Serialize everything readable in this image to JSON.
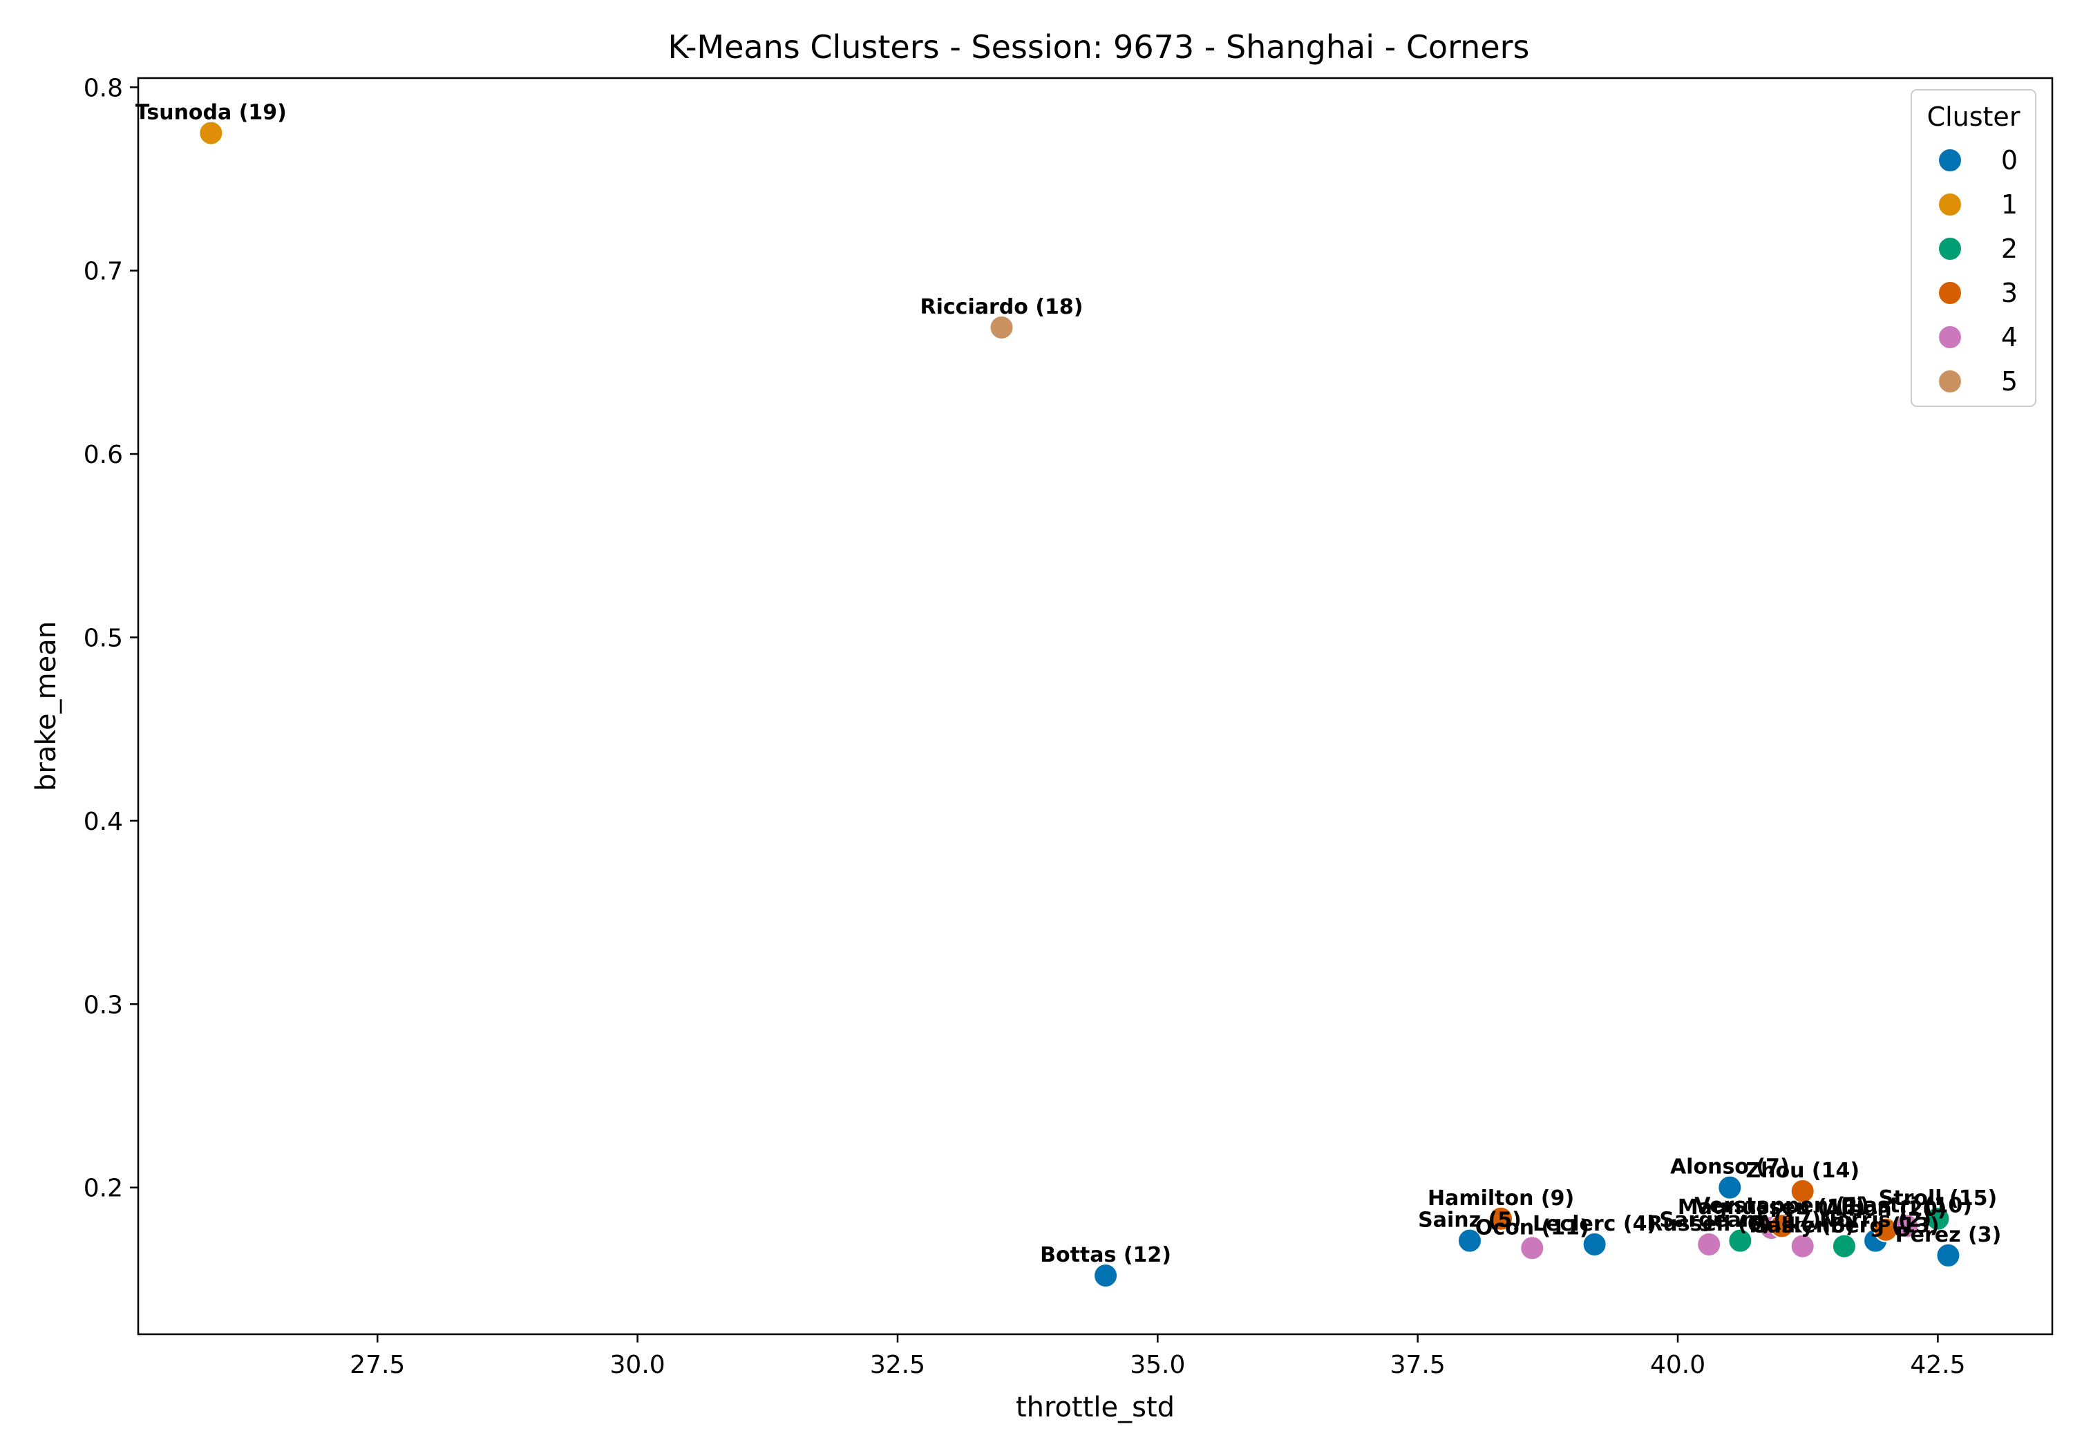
{
  "chart_data": {
    "type": "scatter",
    "title": "K-Means Clusters - Session: 9673 - Shanghai - Corners",
    "xlabel": "throttle_std",
    "ylabel": "brake_mean",
    "xlim": [
      25.2,
      43.6
    ],
    "ylim": [
      0.12,
      0.805
    ],
    "xticks": [
      27.5,
      30.0,
      32.5,
      35.0,
      37.5,
      40.0,
      42.5
    ],
    "xtick_labels": [
      "27.5",
      "30.0",
      "32.5",
      "35.0",
      "37.5",
      "40.0",
      "42.5"
    ],
    "yticks": [
      0.2,
      0.3,
      0.4,
      0.5,
      0.6,
      0.7,
      0.8
    ],
    "ytick_labels": [
      "0.2",
      "0.3",
      "0.4",
      "0.5",
      "0.6",
      "0.7",
      "0.8"
    ],
    "grid": false,
    "legend": {
      "title": "Cluster",
      "placement": "top-right",
      "entries": [
        {
          "label": "0",
          "color": "#0173b2"
        },
        {
          "label": "1",
          "color": "#de8f05"
        },
        {
          "label": "2",
          "color": "#029e73"
        },
        {
          "label": "3",
          "color": "#d55e00"
        },
        {
          "label": "4",
          "color": "#cc78bc"
        },
        {
          "label": "5",
          "color": "#ca9161"
        }
      ]
    },
    "points": [
      {
        "label": "Tsunoda (19)",
        "x": 25.9,
        "y": 0.775,
        "cluster": 1
      },
      {
        "label": "Ricciardo (18)",
        "x": 33.5,
        "y": 0.669,
        "cluster": 5
      },
      {
        "label": "Bottas (12)",
        "x": 34.5,
        "y": 0.152,
        "cluster": 0
      },
      {
        "label": "Sainz (5)",
        "x": 38.0,
        "y": 0.171,
        "cluster": 0
      },
      {
        "label": "Hamilton (9)",
        "x": 38.3,
        "y": 0.183,
        "cluster": 3
      },
      {
        "label": "Ocon (11)",
        "x": 38.6,
        "y": 0.167,
        "cluster": 4
      },
      {
        "label": "Leclerc (4)",
        "x": 39.2,
        "y": 0.169,
        "cluster": 0
      },
      {
        "label": "Russell (6)",
        "x": 40.3,
        "y": 0.169,
        "cluster": 4
      },
      {
        "label": "Alonso (7)",
        "x": 40.5,
        "y": 0.2,
        "cluster": 0
      },
      {
        "label": "Sargeant (17)",
        "x": 40.6,
        "y": 0.171,
        "cluster": 2
      },
      {
        "label": "Magnussen (16)",
        "x": 40.9,
        "y": 0.178,
        "cluster": 4
      },
      {
        "label": "Verstappen (1)",
        "x": 41.0,
        "y": 0.179,
        "cluster": 3
      },
      {
        "label": "Gasly (8)",
        "x": 41.2,
        "y": 0.168,
        "cluster": 4
      },
      {
        "label": "Zhou (14)",
        "x": 41.2,
        "y": 0.198,
        "cluster": 3
      },
      {
        "label": "Hulkenberg (13)",
        "x": 41.6,
        "y": 0.168,
        "cluster": 2
      },
      {
        "label": "Norris (2)",
        "x": 41.9,
        "y": 0.171,
        "cluster": 0
      },
      {
        "label": "Albon (20)",
        "x": 42.0,
        "y": 0.177,
        "cluster": 3
      },
      {
        "label": "Piastri (10)",
        "x": 42.2,
        "y": 0.179,
        "cluster": 4
      },
      {
        "label": "Stroll (15)",
        "x": 42.5,
        "y": 0.183,
        "cluster": 2
      },
      {
        "label": "Perez (3)",
        "x": 42.6,
        "y": 0.163,
        "cluster": 0
      }
    ]
  }
}
